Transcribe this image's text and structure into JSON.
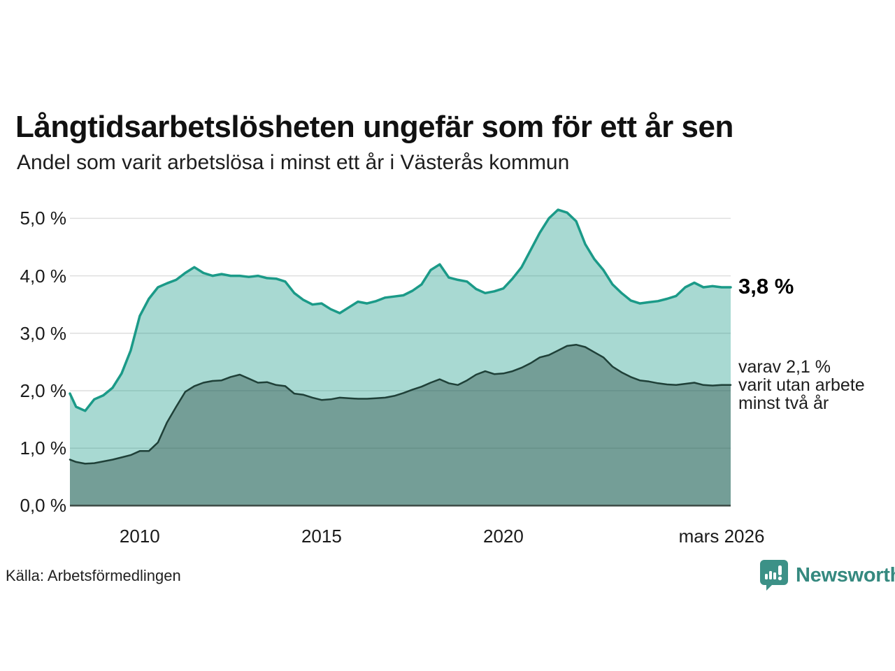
{
  "header": {
    "title": "Långtidsarbetslösheten ungefär som för ett år sen",
    "subtitle": "Andel som varit arbetslösa i minst ett år i Västerås kommun"
  },
  "annotations": {
    "value_label": "3,8 %",
    "detail_label": "varav 2,1 %\nvarit utan arbete\nminst två år"
  },
  "footer": {
    "source": "Källa: Arbetsförmedlingen",
    "brand": "Newsworthy"
  },
  "colors": {
    "line_primary": "#1b9a88",
    "fill_primary": "rgba(27,154,136,0.38)",
    "line_secondary": "#1f4038",
    "fill_secondary": "rgba(31,64,56,0.38)",
    "gridline": "rgba(0,0,0,0.13)",
    "axis_line": "#3c4a45",
    "brand_teal": "#3c9187"
  },
  "chart_data": {
    "type": "area",
    "title": "Långtidsarbetslösheten ungefär som för ett år sen",
    "subtitle": "Andel som varit arbetslösa i minst ett år i Västerås kommun",
    "x_unit": "decimal_year",
    "x_range": [
      2008.08,
      2026.25
    ],
    "y_range": [
      0,
      5.3
    ],
    "grid": true,
    "legend": "none (direct labels at line ends)",
    "x_ticks": [
      {
        "x": 2010.0,
        "label": "2010"
      },
      {
        "x": 2015.0,
        "label": "2015"
      },
      {
        "x": 2020.0,
        "label": "2020"
      },
      {
        "x": 2026.0,
        "label": "mars 2026"
      }
    ],
    "y_ticks": [
      {
        "v": 5,
        "label": "5,0 %"
      },
      {
        "v": 4,
        "label": "4,0 %"
      },
      {
        "v": 3,
        "label": "3,0 %"
      },
      {
        "v": 2,
        "label": "2,0 %"
      },
      {
        "v": 1,
        "label": "1,0 %"
      },
      {
        "v": 0,
        "label": "0,0 %"
      }
    ],
    "gridline_values": [
      1,
      2,
      3,
      4,
      5
    ],
    "x": [
      2008.08,
      2008.25,
      2008.5,
      2008.75,
      2009.0,
      2009.25,
      2009.5,
      2009.75,
      2010.0,
      2010.25,
      2010.5,
      2010.75,
      2011.0,
      2011.25,
      2011.5,
      2011.75,
      2012.0,
      2012.25,
      2012.5,
      2012.75,
      2013.0,
      2013.25,
      2013.5,
      2013.75,
      2014.0,
      2014.25,
      2014.5,
      2014.75,
      2015.0,
      2015.25,
      2015.5,
      2015.75,
      2016.0,
      2016.25,
      2016.5,
      2016.75,
      2017.0,
      2017.25,
      2017.5,
      2017.75,
      2018.0,
      2018.25,
      2018.5,
      2018.75,
      2019.0,
      2019.25,
      2019.5,
      2019.75,
      2020.0,
      2020.25,
      2020.5,
      2020.75,
      2021.0,
      2021.25,
      2021.5,
      2021.75,
      2022.0,
      2022.25,
      2022.5,
      2022.75,
      2023.0,
      2023.25,
      2023.5,
      2023.75,
      2024.0,
      2024.25,
      2024.5,
      2024.75,
      2025.0,
      2025.25,
      2025.5,
      2025.75,
      2026.0,
      2026.25
    ],
    "series": [
      {
        "name": "arbetslösa minst ett år",
        "end_value": 3.8,
        "end_label": "3,8 %",
        "color": "#1b9a88",
        "fill": "rgba(27,154,136,0.38)",
        "stroke_width": 3.5,
        "values": [
          1.95,
          1.72,
          1.65,
          1.85,
          1.92,
          2.05,
          2.3,
          2.7,
          3.3,
          3.6,
          3.8,
          3.87,
          3.93,
          4.05,
          4.15,
          4.05,
          4.0,
          4.03,
          4.0,
          4.0,
          3.98,
          4.0,
          3.96,
          3.95,
          3.9,
          3.7,
          3.58,
          3.5,
          3.52,
          3.42,
          3.35,
          3.45,
          3.55,
          3.52,
          3.56,
          3.62,
          3.64,
          3.66,
          3.74,
          3.85,
          4.1,
          4.2,
          3.97,
          3.93,
          3.9,
          3.77,
          3.7,
          3.73,
          3.78,
          3.95,
          4.15,
          4.45,
          4.75,
          5.0,
          5.15,
          5.1,
          4.95,
          4.55,
          4.29,
          4.1,
          3.85,
          3.7,
          3.57,
          3.52,
          3.54,
          3.56,
          3.6,
          3.65,
          3.8,
          3.88,
          3.8,
          3.82,
          3.8,
          3.8
        ]
      },
      {
        "name": "varav utan arbete minst två år",
        "end_value": 2.1,
        "end_label": "varav 2,1 % varit utan arbete minst två år",
        "color": "#1f4038",
        "fill": "rgba(31,64,56,0.38)",
        "stroke_width": 2.5,
        "values": [
          0.8,
          0.76,
          0.73,
          0.74,
          0.77,
          0.8,
          0.84,
          0.88,
          0.95,
          0.95,
          1.1,
          1.45,
          1.72,
          1.98,
          2.08,
          2.14,
          2.17,
          2.18,
          2.24,
          2.28,
          2.21,
          2.14,
          2.15,
          2.1,
          2.08,
          1.95,
          1.93,
          1.88,
          1.84,
          1.85,
          1.88,
          1.87,
          1.86,
          1.86,
          1.87,
          1.88,
          1.91,
          1.96,
          2.02,
          2.07,
          2.14,
          2.2,
          2.13,
          2.1,
          2.18,
          2.28,
          2.34,
          2.29,
          2.3,
          2.34,
          2.4,
          2.48,
          2.58,
          2.62,
          2.7,
          2.78,
          2.8,
          2.76,
          2.67,
          2.58,
          2.42,
          2.32,
          2.24,
          2.18,
          2.16,
          2.13,
          2.11,
          2.1,
          2.12,
          2.14,
          2.1,
          2.09,
          2.1,
          2.1
        ]
      }
    ]
  }
}
